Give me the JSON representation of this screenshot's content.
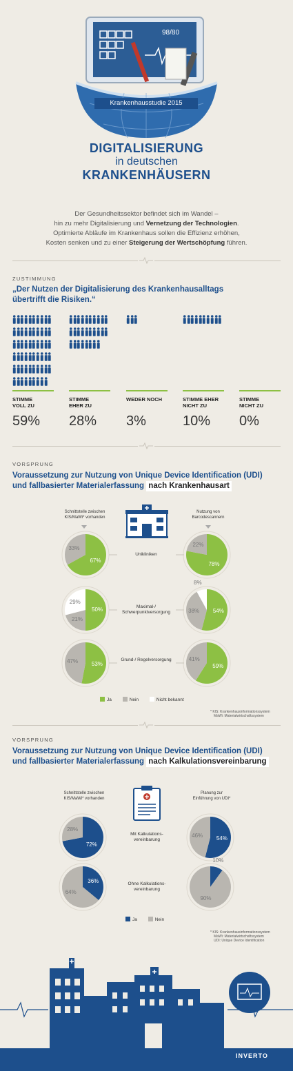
{
  "hero": {
    "banner": "Krankenhausstudie 2015",
    "monitor_readout": "98/80",
    "title_line1": "DIGITALISIERUNG",
    "title_line2": "in deutschen",
    "title_line3": "KRANKENHÄUSERN"
  },
  "intro": {
    "line1": "Der Gesundheitssektor befindet sich im Wandel –",
    "line2a": "hin zu mehr Digitalisierung und ",
    "line2b": "Vernetzung der Technologien",
    "line2c": ".",
    "line3": "Optimierte Abläufe im Krankenhaus sollen die Effizienz erhöhen,",
    "line4a": "Kosten senken und zu einer ",
    "line4b": "Steigerung der Wertschöpfung",
    "line4c": " führen."
  },
  "zustimmung": {
    "label": "ZUSTIMMUNG",
    "quote_line1": "„Der Nutzen der Digitalisierung des Krankenhausalltags",
    "quote_line2": "übertrifft die Risiken.“",
    "columns": [
      {
        "label1": "STIMME",
        "label2": "VOLL ZU",
        "pct": "59%",
        "value": 59
      },
      {
        "label1": "STIMME",
        "label2": "EHER ZU",
        "pct": "28%",
        "value": 28
      },
      {
        "label1": "WEDER NOCH",
        "label2": "",
        "pct": "3%",
        "value": 3
      },
      {
        "label1": "STIMME EHER",
        "label2": "NICHT ZU",
        "pct": "10%",
        "value": 10
      },
      {
        "label1": "STIMME",
        "label2": "NICHT ZU",
        "pct": "0%",
        "value": 0
      }
    ]
  },
  "section2": {
    "label": "VORSPRUNG",
    "title_line1": "Voraussetzung zur Nutzung von Unique Device Identification (UDI)",
    "title_line2": "und fallbasierter Materialerfassung",
    "title_tag": "nach Krankenhausart",
    "left_header": "Schnittstelle zwischen KIS/MaWi* vorhanden",
    "right_header": "Nutzung von Barcodescannern",
    "rows": [
      {
        "label": "Unikliniken",
        "left": {
          "ja": 67,
          "nein": 33,
          "nb": 0,
          "ja_l": "67%",
          "nein_l": "33%",
          "nb_l": ""
        },
        "right": {
          "ja": 78,
          "nein": 22,
          "nb": 0,
          "ja_l": "78%",
          "nein_l": "22%",
          "nb_l": ""
        }
      },
      {
        "label": "Maximal-/ Schwerpunktversorgung",
        "left": {
          "ja": 50,
          "nein": 21,
          "nb": 29,
          "ja_l": "50%",
          "nein_l": "21%",
          "nb_l": "29%"
        },
        "right": {
          "ja": 54,
          "nein": 38,
          "nb": 8,
          "ja_l": "54%",
          "nein_l": "38%",
          "nb_l": "8%"
        }
      },
      {
        "label": "Grund-/ Regelversorgung",
        "left": {
          "ja": 53,
          "nein": 47,
          "nb": 0,
          "ja_l": "53%",
          "nein_l": "47%",
          "nb_l": ""
        },
        "right": {
          "ja": 59,
          "nein": 41,
          "nb": 0,
          "ja_l": "59%",
          "nein_l": "41%",
          "nb_l": ""
        }
      }
    ],
    "legend": {
      "ja": "Ja",
      "nein": "Nein",
      "nb": "Nicht bekannt"
    },
    "footnote1": "* KIS: Krankenhausinformationssystem",
    "footnote2": "MaWi: Materialwirtschaftssystem"
  },
  "section3": {
    "label": "VORSPRUNG",
    "title_line1": "Voraussetzung zur Nutzung von Unique Device Identification (UDI)",
    "title_line2": "und fallbasierter Materialerfassung",
    "title_tag": "nach Kalkulationsvereinbarung",
    "left_header": "Schnittstelle zwischen KIS/MaWi* vorhanden",
    "right_header": "Planung zur Einführung von UDI*",
    "rows": [
      {
        "label": "Mit Kalkulations- vereinbarung",
        "left": {
          "ja": 72,
          "nein": 28,
          "ja_l": "72%",
          "nein_l": "28%"
        },
        "right": {
          "ja": 54,
          "nein": 46,
          "ja_l": "54%",
          "nein_l": "46%"
        }
      },
      {
        "label": "Ohne Kalkulations- vereinbarung",
        "left": {
          "ja": 36,
          "nein": 64,
          "ja_l": "36%",
          "nein_l": "64%"
        },
        "right": {
          "ja": 10,
          "nein": 90,
          "ja_l": "10%",
          "nein_l": "90%"
        }
      }
    ],
    "legend": {
      "ja": "Ja",
      "nein": "Nein"
    },
    "footnote1": "* KIS: Krankenhausinformationssystem",
    "footnote2": "MaWi: Materialwirtschaftssystem",
    "footnote3": "UDI: Unique Device Identification"
  },
  "footer": {
    "brand": "INVERTO"
  },
  "colors": {
    "blue": "#1d4f8c",
    "green": "#8dc044",
    "gray": "#b9b6b0",
    "white": "#ffffff",
    "bg": "#efece5"
  }
}
